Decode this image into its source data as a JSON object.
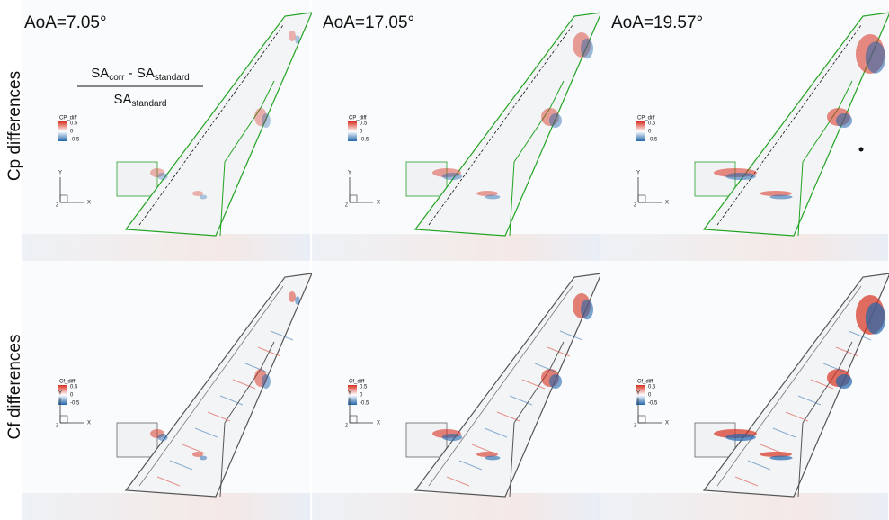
{
  "columns": [
    {
      "title": "AoA=7.05°"
    },
    {
      "title": "AoA=17.05°"
    },
    {
      "title": "AoA=19.57°"
    }
  ],
  "rows": [
    {
      "label": "Cp differences",
      "legend_title": "CP_diff"
    },
    {
      "label": "Cf differences",
      "legend_title": "Cf_diff"
    }
  ],
  "legend_ticks": [
    "0.5",
    "0",
    "-0.5"
  ],
  "axes": {
    "y": "Y",
    "x": "X",
    "z": "Z"
  },
  "formula": {
    "numerator": {
      "a": "SA",
      "a_sub": "corr",
      "op": " - SA",
      "b_sub": "standard"
    },
    "denominator": {
      "a": "SA",
      "a_sub": "standard"
    }
  }
}
